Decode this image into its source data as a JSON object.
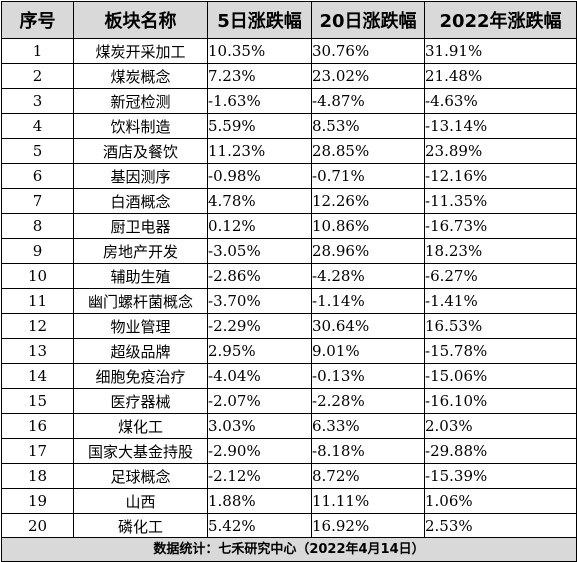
{
  "headers": [
    "序号",
    "板块名称",
    "5日涨跌幅",
    "20日涨跌幅",
    "2022年涨跌幅"
  ],
  "rows": [
    {
      "no": "1",
      "name": "煤炭开采加工",
      "d5": "10.35%",
      "d20": "30.76%",
      "y2022": "31.91%"
    },
    {
      "no": "2",
      "name": "煤炭概念",
      "d5": "7.23%",
      "d20": "23.02%",
      "y2022": "21.48%"
    },
    {
      "no": "3",
      "name": "新冠检测",
      "d5": "-1.63%",
      "d20": "-4.87%",
      "y2022": "-4.63%"
    },
    {
      "no": "4",
      "name": "饮料制造",
      "d5": "5.59%",
      "d20": "8.53%",
      "y2022": "-13.14%"
    },
    {
      "no": "5",
      "name": "酒店及餐饮",
      "d5": "11.23%",
      "d20": "28.85%",
      "y2022": "23.89%"
    },
    {
      "no": "6",
      "name": "基因测序",
      "d5": "-0.98%",
      "d20": "-0.71%",
      "y2022": "-12.16%"
    },
    {
      "no": "7",
      "name": "白酒概念",
      "d5": "4.78%",
      "d20": "12.26%",
      "y2022": "-11.35%"
    },
    {
      "no": "8",
      "name": "厨卫电器",
      "d5": "0.12%",
      "d20": "10.86%",
      "y2022": "-16.73%"
    },
    {
      "no": "9",
      "name": "房地产开发",
      "d5": "-3.05%",
      "d20": "28.96%",
      "y2022": "18.23%"
    },
    {
      "no": "10",
      "name": "辅助生殖",
      "d5": "-2.86%",
      "d20": "-4.28%",
      "y2022": "-6.27%"
    },
    {
      "no": "11",
      "name": "幽门螺杆菌概念",
      "d5": "-3.70%",
      "d20": "-1.14%",
      "y2022": "-1.41%"
    },
    {
      "no": "12",
      "name": "物业管理",
      "d5": "-2.29%",
      "d20": "30.64%",
      "y2022": "16.53%"
    },
    {
      "no": "13",
      "name": "超级品牌",
      "d5": "2.95%",
      "d20": "9.01%",
      "y2022": "-15.78%"
    },
    {
      "no": "14",
      "name": "细胞免疫治疗",
      "d5": "-4.04%",
      "d20": "-0.13%",
      "y2022": "-15.06%"
    },
    {
      "no": "15",
      "name": "医疗器械",
      "d5": "-2.07%",
      "d20": "-2.28%",
      "y2022": "-16.10%"
    },
    {
      "no": "16",
      "name": "煤化工",
      "d5": "3.03%",
      "d20": "6.33%",
      "y2022": "2.03%"
    },
    {
      "no": "17",
      "name": "国家大基金持股",
      "d5": "-2.90%",
      "d20": "-8.18%",
      "y2022": "-29.88%"
    },
    {
      "no": "18",
      "name": "足球概念",
      "d5": "-2.12%",
      "d20": "8.72%",
      "y2022": "-15.39%"
    },
    {
      "no": "19",
      "name": "山西",
      "d5": "1.88%",
      "d20": "11.11%",
      "y2022": "1.06%"
    },
    {
      "no": "20",
      "name": "磷化工",
      "d5": "5.42%",
      "d20": "16.92%",
      "y2022": "2.53%"
    }
  ],
  "footer": "数据统计：七禾研究中心（2022年4月14日）"
}
